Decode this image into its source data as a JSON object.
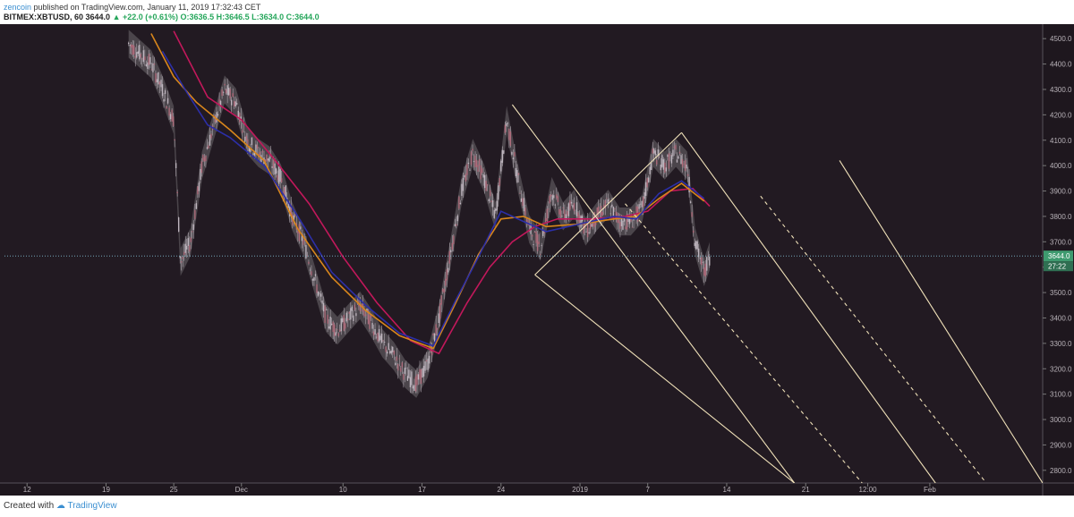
{
  "header": {
    "author": "zencoin",
    "published_text": "published on TradingView.com, January 11, 2019 17:32:43 CET",
    "symbol": "BITMEX:XBTUSD, 60",
    "last": "3644.0",
    "change": "▲ +22.0 (+0.61%)",
    "ohlc": "O:3636.5  H:3646.5  L:3634.0  C:3644.0"
  },
  "footer": {
    "created_with": "Created with",
    "brand": "TradingView",
    "logo_icon": "tradingview-cloud-icon"
  },
  "colors": {
    "background": "#221a22",
    "candle_body": "#c9c0c9",
    "band_fill": "#5a545a",
    "ma_red": "#c2185b",
    "ma_orange": "#d8861c",
    "ma_blue": "#2c2fa8",
    "pitchfork": "#f0e1b9",
    "price_badge": "#3e9a6f"
  },
  "chart_data": {
    "type": "line",
    "symbol": "BITMEX:XBTUSD",
    "interval": "60",
    "ylim": [
      2750,
      4550
    ],
    "y_ticks": [
      "4500.0",
      "4400.0",
      "4300.0",
      "4200.0",
      "4100.0",
      "4000.0",
      "3900.0",
      "3800.0",
      "3700.0",
      "3600.0",
      "3500.0",
      "3400.0",
      "3300.0",
      "3200.0",
      "3100.0",
      "3000.0",
      "2900.0",
      "2800.0"
    ],
    "x_range": [
      0,
      92
    ],
    "x_ticks": [
      {
        "label": "12",
        "x": 2
      },
      {
        "label": "19",
        "x": 9
      },
      {
        "label": "25",
        "x": 15
      },
      {
        "label": "Dec",
        "x": 21
      },
      {
        "label": "10",
        "x": 30
      },
      {
        "label": "17",
        "x": 37
      },
      {
        "label": "24",
        "x": 44
      },
      {
        "label": "2019",
        "x": 51
      },
      {
        "label": "7",
        "x": 57
      },
      {
        "label": "14",
        "x": 64
      },
      {
        "label": "21",
        "x": 71
      },
      {
        "label": "12:00",
        "x": 76.5
      },
      {
        "label": "Feb",
        "x": 82
      }
    ],
    "last_price": "3644.0",
    "countdown": "27:22",
    "price_path": [
      [
        11,
        4480
      ],
      [
        12,
        4440
      ],
      [
        13,
        4400
      ],
      [
        14,
        4300
      ],
      [
        15,
        4180
      ],
      [
        15.6,
        3620
      ],
      [
        16.5,
        3700
      ],
      [
        17.5,
        4000
      ],
      [
        18.5,
        4150
      ],
      [
        19.5,
        4300
      ],
      [
        20.5,
        4250
      ],
      [
        21.5,
        4100
      ],
      [
        22.5,
        4050
      ],
      [
        23.5,
        4020
      ],
      [
        24.5,
        3950
      ],
      [
        25.5,
        3800
      ],
      [
        26.5,
        3700
      ],
      [
        27.5,
        3550
      ],
      [
        28.5,
        3400
      ],
      [
        29.5,
        3350
      ],
      [
        30.5,
        3400
      ],
      [
        31.5,
        3450
      ],
      [
        32.5,
        3380
      ],
      [
        33.5,
        3300
      ],
      [
        34.5,
        3250
      ],
      [
        35.5,
        3180
      ],
      [
        36.5,
        3140
      ],
      [
        37.5,
        3220
      ],
      [
        38.5,
        3400
      ],
      [
        39.5,
        3650
      ],
      [
        40.5,
        3900
      ],
      [
        41.5,
        4050
      ],
      [
        42.5,
        3950
      ],
      [
        43.5,
        3800
      ],
      [
        44.5,
        4180
      ],
      [
        45.5,
        3950
      ],
      [
        46.5,
        3750
      ],
      [
        47.5,
        3680
      ],
      [
        48.5,
        3900
      ],
      [
        49.5,
        3800
      ],
      [
        50.5,
        3850
      ],
      [
        51.5,
        3740
      ],
      [
        52.5,
        3800
      ],
      [
        53.5,
        3850
      ],
      [
        54.5,
        3780
      ],
      [
        55.5,
        3780
      ],
      [
        56.5,
        3830
      ],
      [
        57.5,
        4050
      ],
      [
        58.5,
        4000
      ],
      [
        59.5,
        4050
      ],
      [
        60.5,
        4000
      ],
      [
        61.2,
        3700
      ],
      [
        62,
        3580
      ],
      [
        62.5,
        3644
      ]
    ],
    "band_half_width": 55,
    "series": [
      {
        "color": "#c2185b",
        "values": [
          [
            15,
            4530
          ],
          [
            18,
            4270
          ],
          [
            21,
            4180
          ],
          [
            24,
            4020
          ],
          [
            27,
            3850
          ],
          [
            30,
            3640
          ],
          [
            33,
            3460
          ],
          [
            36,
            3310
          ],
          [
            38.5,
            3260
          ],
          [
            41,
            3460
          ],
          [
            43,
            3600
          ],
          [
            45,
            3700
          ],
          [
            47,
            3760
          ],
          [
            49,
            3790
          ],
          [
            52,
            3790
          ],
          [
            55,
            3800
          ],
          [
            57,
            3820
          ],
          [
            59,
            3900
          ],
          [
            61,
            3910
          ],
          [
            62.5,
            3840
          ]
        ]
      },
      {
        "color": "#d8861c",
        "values": [
          [
            13,
            4520
          ],
          [
            15,
            4350
          ],
          [
            17,
            4250
          ],
          [
            20,
            4140
          ],
          [
            23,
            4020
          ],
          [
            26,
            3750
          ],
          [
            29,
            3560
          ],
          [
            32,
            3430
          ],
          [
            35,
            3330
          ],
          [
            38,
            3280
          ],
          [
            40,
            3460
          ],
          [
            42,
            3650
          ],
          [
            44,
            3790
          ],
          [
            46,
            3800
          ],
          [
            48,
            3760
          ],
          [
            51,
            3770
          ],
          [
            54,
            3790
          ],
          [
            56,
            3800
          ],
          [
            58,
            3870
          ],
          [
            60,
            3930
          ],
          [
            62,
            3860
          ]
        ]
      },
      {
        "color": "#2c2fa8",
        "values": [
          [
            14,
            4450
          ],
          [
            16,
            4300
          ],
          [
            18,
            4160
          ],
          [
            20,
            4110
          ],
          [
            23,
            4000
          ],
          [
            26,
            3800
          ],
          [
            29,
            3580
          ],
          [
            32,
            3450
          ],
          [
            35,
            3340
          ],
          [
            38,
            3290
          ],
          [
            40,
            3470
          ],
          [
            42,
            3640
          ],
          [
            44,
            3820
          ],
          [
            46,
            3780
          ],
          [
            48,
            3740
          ],
          [
            51,
            3770
          ],
          [
            54,
            3800
          ],
          [
            56,
            3790
          ],
          [
            58,
            3890
          ],
          [
            60,
            3940
          ],
          [
            62,
            3870
          ]
        ]
      }
    ],
    "pitchfork_lines": [
      {
        "from": [
          45,
          4240
        ],
        "to": [
          70,
          2750
        ],
        "style": "solid"
      },
      {
        "from": [
          60,
          4130
        ],
        "to": [
          82.5,
          2750
        ],
        "style": "solid"
      },
      {
        "from": [
          74,
          4020
        ],
        "to": [
          92,
          2750
        ],
        "style": "solid"
      },
      {
        "from": [
          47,
          3570
        ],
        "to": [
          60,
          4130
        ],
        "style": "solid"
      },
      {
        "from": [
          47,
          3570
        ],
        "to": [
          70,
          2750
        ],
        "style": "solid"
      },
      {
        "from": [
          55,
          3850
        ],
        "to": [
          76,
          2750
        ],
        "style": "dashed"
      },
      {
        "from": [
          67,
          3880
        ],
        "to": [
          87,
          2750
        ],
        "style": "dashed"
      }
    ]
  }
}
